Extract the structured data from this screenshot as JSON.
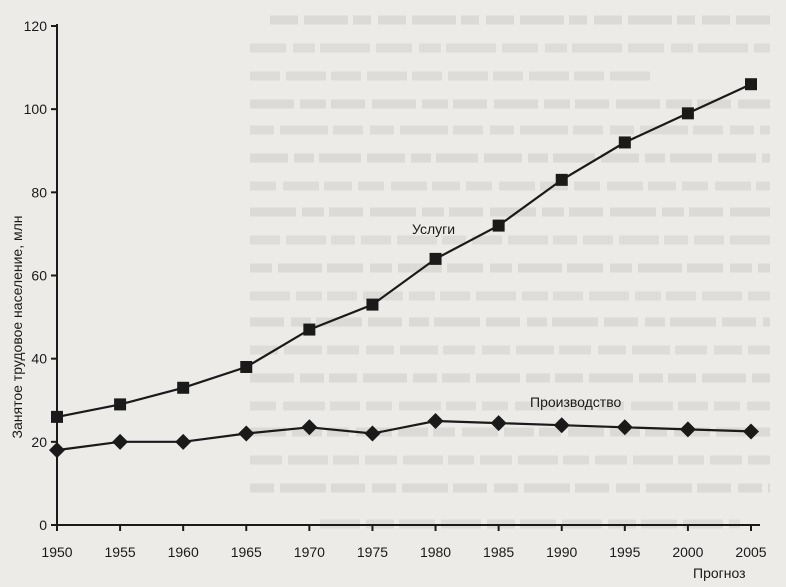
{
  "chart_data": {
    "type": "line",
    "ylabel": "Занятое трудовое население, млн",
    "xlabel": "",
    "note": "Прогноз",
    "ylim": [
      0,
      120
    ],
    "yticks": [
      0,
      20,
      40,
      60,
      80,
      100,
      120
    ],
    "x": [
      1950,
      1955,
      1960,
      1965,
      1970,
      1975,
      1980,
      1985,
      1990,
      1995,
      2000,
      2005
    ],
    "series": [
      {
        "name": "Услуги",
        "values": [
          26,
          29,
          33,
          38,
          47,
          53,
          64,
          72,
          83,
          92,
          99,
          106
        ],
        "marker": "square"
      },
      {
        "name": "Производство",
        "values": [
          18,
          20,
          20,
          22,
          23.5,
          22,
          25,
          24.5,
          24,
          23.5,
          23,
          22.5
        ],
        "marker": "diamond"
      }
    ],
    "grid": false,
    "line_color": "#1a1a1a"
  }
}
